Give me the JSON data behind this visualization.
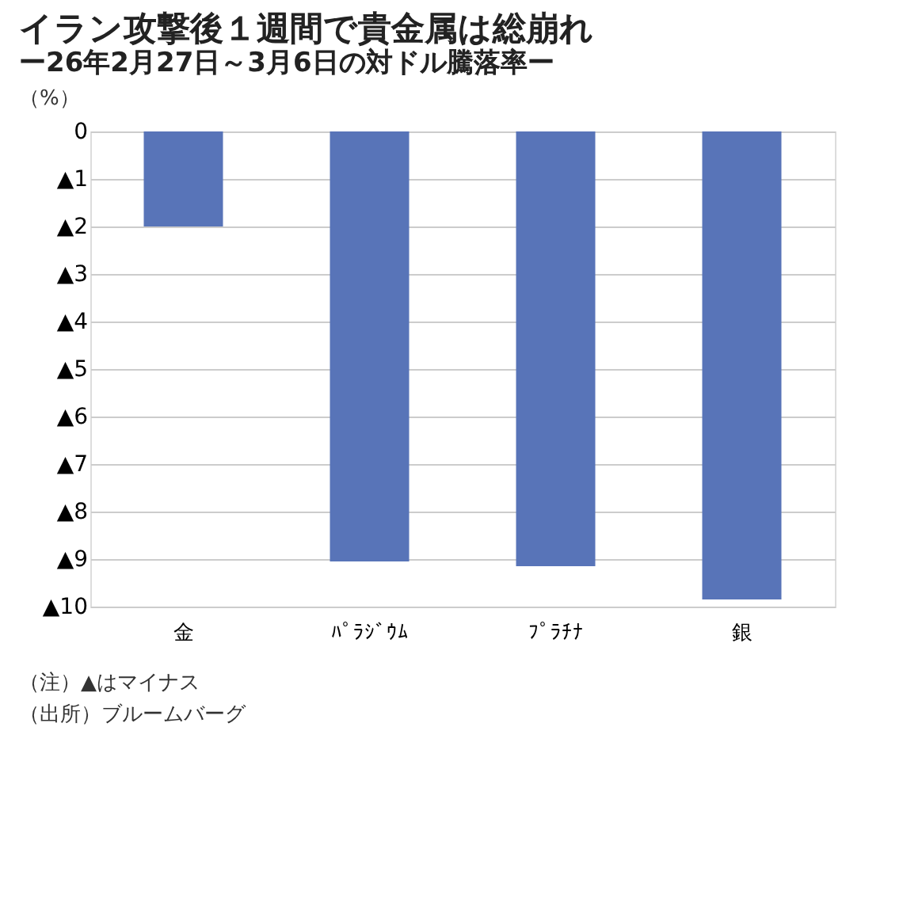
{
  "chart_data": {
    "type": "bar",
    "title": "イラン攻撃後１週間で貴金属は総崩れ",
    "subtitle": "ー26年2月27日～3月6日の対ドル騰落率ー",
    "ylabel": "（%）",
    "categories": [
      "金",
      "ﾊﾟﾗｼﾞｳﾑ",
      "ﾌﾟﾗﾁﾅ",
      "銀"
    ],
    "series": [
      {
        "color": "#5874b8",
        "values": [
          -2.0,
          -9.05,
          -9.15,
          -9.85
        ]
      }
    ],
    "ylim": [
      -10,
      0
    ],
    "yticks": [
      0,
      {
        "value": -1,
        "label": "▲1"
      },
      {
        "value": -2,
        "label": "▲2"
      },
      {
        "value": -3,
        "label": "▲3"
      },
      {
        "value": -4,
        "label": "▲4"
      },
      {
        "value": -5,
        "label": "▲5"
      },
      {
        "value": -6,
        "label": "▲6"
      },
      {
        "value": -7,
        "label": "▲7"
      },
      {
        "value": -8,
        "label": "▲8"
      },
      {
        "value": -9,
        "label": "▲9"
      },
      {
        "value": -10,
        "label": "▲10"
      }
    ],
    "grid": "y",
    "annotations": [
      "（注）▲はマイナス",
      "（出所）ブルームバーグ"
    ]
  }
}
